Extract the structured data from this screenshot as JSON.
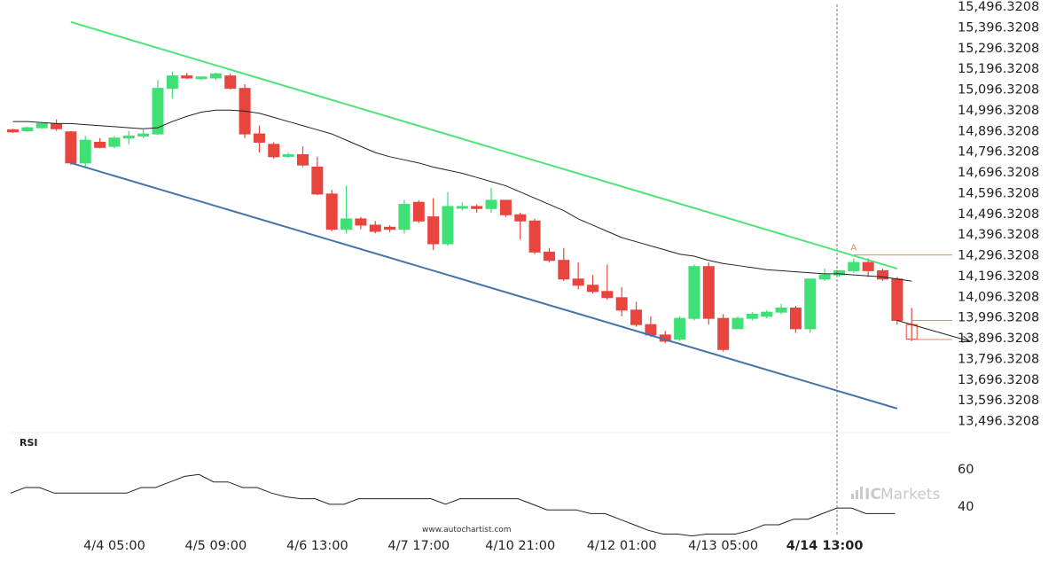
{
  "chart_data": {
    "type": "candlestick",
    "y_ticks": [
      "15,496.3208",
      "15,396.3208",
      "15,296.3208",
      "15,196.3208",
      "15,096.3208",
      "14,996.3208",
      "14,896.3208",
      "14,796.3208",
      "14,696.3208",
      "14,596.3208",
      "14,496.3208",
      "14,396.3208",
      "14,296.3208",
      "14,196.3208",
      "14,096.3208",
      "13,996.3208",
      "13,896.3208",
      "13,796.3208",
      "13,696.3208",
      "13,596.3208",
      "13,496.3208"
    ],
    "x_ticks": [
      {
        "label": "4/4 05:00",
        "bar": 7,
        "bold": false
      },
      {
        "label": "4/5 09:00",
        "bar": 14,
        "bold": false
      },
      {
        "label": "4/6 13:00",
        "bar": 21,
        "bold": false
      },
      {
        "label": "4/7 17:00",
        "bar": 28,
        "bold": false
      },
      {
        "label": "4/10 21:00",
        "bar": 35,
        "bold": false
      },
      {
        "label": "4/12 01:00",
        "bar": 42,
        "bold": false
      },
      {
        "label": "4/13 05:00",
        "bar": 49,
        "bold": false
      },
      {
        "label": "4/14 13:00",
        "bar": 56,
        "bold": true
      }
    ],
    "candles": [
      [
        14900,
        14905,
        14890,
        14885
      ],
      [
        14895,
        14915,
        14910,
        14890
      ],
      [
        14910,
        14935,
        14930,
        14905
      ],
      [
        14930,
        14950,
        14905,
        14895
      ],
      [
        14890,
        14895,
        14740,
        14730
      ],
      [
        14740,
        14870,
        14850,
        14720
      ],
      [
        14840,
        14860,
        14815,
        14810
      ],
      [
        14820,
        14870,
        14860,
        14810
      ],
      [
        14860,
        14895,
        14870,
        14830
      ],
      [
        14870,
        14900,
        14880,
        14860
      ],
      [
        14880,
        15140,
        15100,
        14875
      ],
      [
        15100,
        15180,
        15160,
        15050
      ],
      [
        15160,
        15175,
        15150,
        15145
      ],
      [
        15150,
        15155,
        15155,
        15140
      ],
      [
        15150,
        15175,
        15170,
        15140
      ],
      [
        15160,
        15170,
        15100,
        15095
      ],
      [
        15100,
        15120,
        14880,
        14860
      ],
      [
        14880,
        14920,
        14840,
        14790
      ],
      [
        14830,
        14840,
        14770,
        14760
      ],
      [
        14780,
        14790,
        14780,
        14765
      ],
      [
        14780,
        14820,
        14730,
        14720
      ],
      [
        14720,
        14770,
        14590,
        14585
      ],
      [
        14590,
        14610,
        14420,
        14410
      ],
      [
        14420,
        14630,
        14470,
        14400
      ],
      [
        14470,
        14480,
        14440,
        14420
      ],
      [
        14440,
        14460,
        14410,
        14400
      ],
      [
        14430,
        14440,
        14420,
        14405
      ],
      [
        14420,
        14560,
        14540,
        14400
      ],
      [
        14550,
        14560,
        14460,
        14450
      ],
      [
        14480,
        14570,
        14350,
        14320
      ],
      [
        14350,
        14600,
        14530,
        14340
      ],
      [
        14530,
        14550,
        14530,
        14510
      ],
      [
        14530,
        14540,
        14520,
        14500
      ],
      [
        14520,
        14620,
        14560,
        14500
      ],
      [
        14560,
        14560,
        14490,
        14480
      ],
      [
        14490,
        14500,
        14460,
        14370
      ],
      [
        14460,
        14470,
        14310,
        14300
      ],
      [
        14310,
        14330,
        14270,
        14260
      ],
      [
        14270,
        14330,
        14180,
        14170
      ],
      [
        14180,
        14260,
        14150,
        14130
      ],
      [
        14150,
        14200,
        14120,
        14110
      ],
      [
        14120,
        14250,
        14090,
        14080
      ],
      [
        14090,
        14140,
        14030,
        14000
      ],
      [
        14030,
        14070,
        13960,
        13950
      ],
      [
        13960,
        14000,
        13910,
        13900
      ],
      [
        13910,
        13930,
        13880,
        13870
      ],
      [
        13890,
        14000,
        13990,
        13880
      ],
      [
        13990,
        14250,
        14240,
        13980
      ],
      [
        14240,
        14260,
        13990,
        13960
      ],
      [
        13990,
        14010,
        13840,
        13830
      ],
      [
        13940,
        14000,
        13990,
        13940
      ],
      [
        13990,
        14020,
        14010,
        13980
      ],
      [
        14000,
        14030,
        14020,
        13990
      ],
      [
        14020,
        14060,
        14040,
        14010
      ],
      [
        14040,
        14050,
        13940,
        13920
      ],
      [
        13940,
        14180,
        14180,
        13920
      ],
      [
        14180,
        14230,
        14200,
        14170
      ],
      [
        14200,
        14220,
        14220,
        14190
      ],
      [
        14220,
        14280,
        14260,
        14210
      ],
      [
        14260,
        14280,
        14220,
        14190
      ],
      [
        14220,
        14230,
        14180,
        14170
      ],
      [
        14180,
        14190,
        13980,
        13960
      ],
      [
        13960,
        14040,
        13890,
        13880
      ]
    ],
    "sma": [
      14940,
      14940,
      14935,
      14930,
      14930,
      14925,
      14920,
      14915,
      14910,
      14905,
      14910,
      14940,
      14965,
      14985,
      14995,
      14995,
      14990,
      14980,
      14960,
      14940,
      14920,
      14900,
      14880,
      14850,
      14820,
      14790,
      14770,
      14755,
      14740,
      14720,
      14705,
      14690,
      14670,
      14650,
      14630,
      14600,
      14570,
      14540,
      14510,
      14470,
      14440,
      14410,
      14380,
      14360,
      14340,
      14320,
      14300,
      14290,
      14270,
      14255,
      14245,
      14235,
      14225,
      14220,
      14215,
      14210,
      14205,
      14205,
      14200,
      14195,
      14190,
      14180,
      14170
    ],
    "trendline_upper": {
      "bar_start": 4,
      "price_start": 15420,
      "bar_end": 61,
      "price_end": 14230
    },
    "trendline_lower": {
      "bar_start": 4,
      "price_start": 14740,
      "bar_end": 61,
      "price_end": 13555
    },
    "forecast_arrow": {
      "bar_start": 61,
      "price_start": 13980,
      "bar_end": 66,
      "price_end": 13880
    },
    "resistance_level": 14296,
    "forecast_levels": [
      13980,
      13888
    ],
    "pattern_marker_label": "A",
    "pattern_marker_bar": 58,
    "pattern_marker_price": 14300,
    "rsi_label": "RSI",
    "rsi_ticks": [
      "60",
      "40"
    ],
    "rsi": [
      47,
      50,
      50,
      47,
      47,
      47,
      47,
      47,
      47,
      50,
      50,
      53,
      56,
      57,
      53,
      53,
      50,
      50,
      47,
      45,
      44,
      44,
      41,
      41,
      44,
      44,
      44,
      44,
      44,
      44,
      41,
      44,
      44,
      44,
      44,
      44,
      41,
      38,
      38,
      38,
      36,
      36,
      33,
      30,
      27,
      25,
      25,
      24,
      25,
      25,
      25,
      27,
      30,
      30,
      33,
      33,
      36,
      39,
      39,
      36,
      36,
      36
    ],
    "colors": {
      "up": "#3fe076",
      "down": "#e8453e",
      "upper_line": "#4fe37a",
      "lower_line": "#4673aa",
      "sma": "#222222",
      "levels": "#e08a5e"
    }
  },
  "watermark": {
    "site": "www.autochartist.com",
    "brand_ic": "IC",
    "brand_rest": "Markets"
  }
}
